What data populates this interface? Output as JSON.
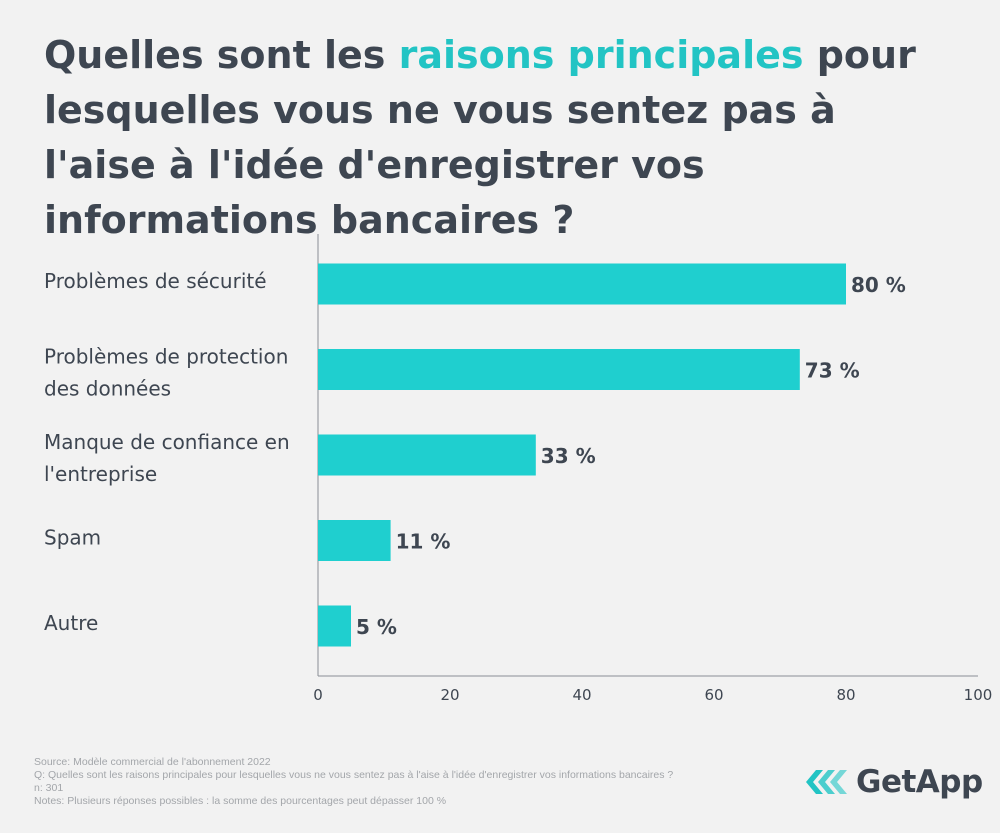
{
  "title": {
    "prefix": "Quelles sont les ",
    "highlight": "raisons principales",
    "suffix": " pour lesquelles vous ne vous sentez pas à l'aise à l'idée d'enregistrer vos informations bancaires ?"
  },
  "chart_data": {
    "type": "bar",
    "orientation": "horizontal",
    "categories": [
      [
        "Problèmes de sécurité"
      ],
      [
        "Problèmes de protection",
        "des données"
      ],
      [
        "Manque de confiance en",
        "l'entreprise"
      ],
      [
        "Spam"
      ],
      [
        "Autre"
      ]
    ],
    "values": [
      80,
      73,
      33,
      11,
      5
    ],
    "value_labels": [
      "80 %",
      "73 %",
      "33 %",
      "11 %",
      "5 %"
    ],
    "xlim": [
      0,
      100
    ],
    "xticks": [
      0,
      20,
      40,
      60,
      80,
      100
    ],
    "bar_color": "#1fcfcf",
    "grid": false
  },
  "notes": {
    "source": "Source: Modèle commercial de l'abonnement 2022",
    "question": "Q: Quelles sont les raisons principales pour lesquelles vous ne vous sentez pas à l'aise à l'idée d'enregistrer vos informations bancaires ?",
    "n": "n: 301",
    "notes": "Notes: Plusieurs réponses possibles : la somme des pourcentages peut dépasser 100 %"
  },
  "logo": {
    "text": "GetApp",
    "icon": "getapp-chevrons-icon"
  },
  "colors": {
    "accent": "#22c4c4",
    "text": "#3e4651",
    "background": "#f2f2f2",
    "muted": "#a3a6aa"
  }
}
